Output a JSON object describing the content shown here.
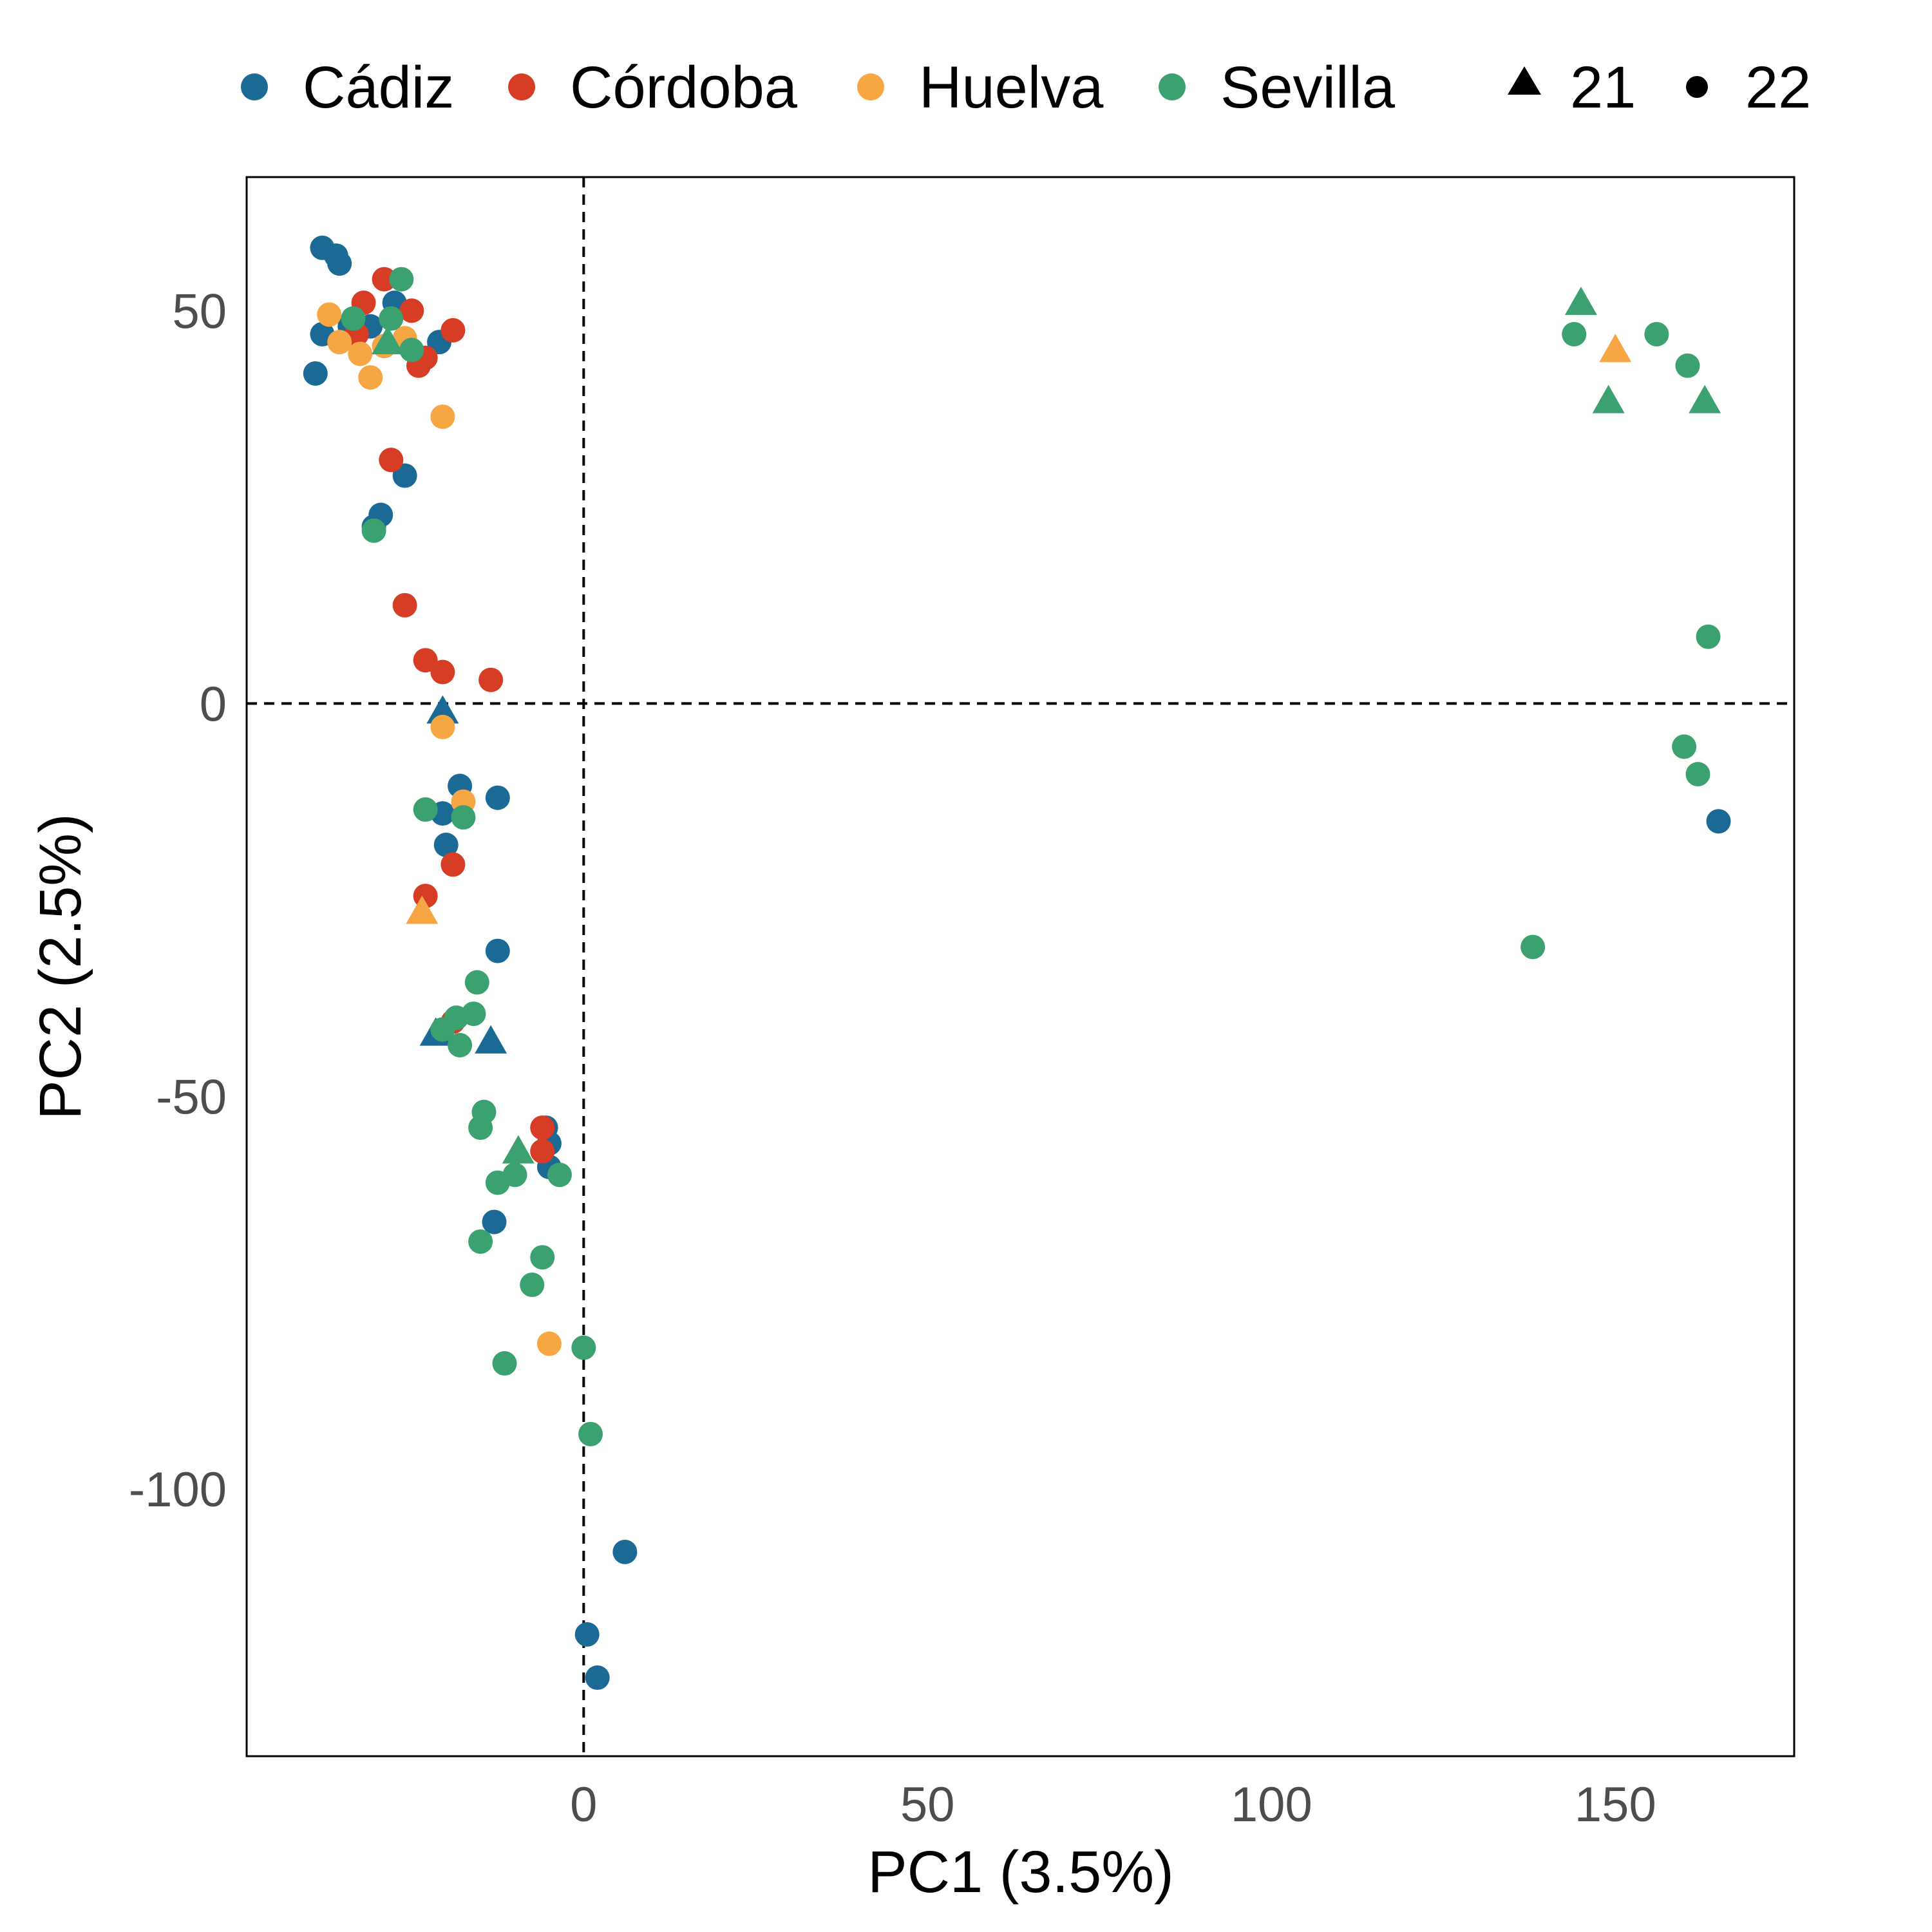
{
  "chart_data": {
    "type": "scatter",
    "title": "",
    "xlabel": "PC1 (3.5%)",
    "ylabel": "PC2 (2.5%)",
    "xlim": [
      -49,
      176
    ],
    "ylim": [
      -134,
      67
    ],
    "x_ticks": [
      0,
      50,
      100,
      150
    ],
    "y_ticks": [
      50,
      0,
      -50,
      -100
    ],
    "x_tick_labels": [
      "0",
      "50",
      "100",
      "150"
    ],
    "y_tick_labels": [
      "50",
      "0",
      "-50",
      "-100"
    ],
    "reference_lines": {
      "x": 0,
      "y": 0,
      "style": "dashed"
    },
    "grid": false,
    "legend_position": "top",
    "legend_color": [
      {
        "label": "Cádiz",
        "color": "#1B6A96"
      },
      {
        "label": "Córdoba",
        "color": "#D73C24"
      },
      {
        "label": "Huelva",
        "color": "#F6A744"
      },
      {
        "label": "Sevilla",
        "color": "#3BA170"
      }
    ],
    "legend_shape": [
      {
        "label": "21",
        "shape": "triangle"
      },
      {
        "label": "22",
        "shape": "circle"
      }
    ],
    "series": [
      {
        "name": "Cádiz",
        "color": "#1B6A96",
        "points": [
          {
            "x": -38,
            "y": 58,
            "shape": "circle"
          },
          {
            "x": -36,
            "y": 57,
            "shape": "circle"
          },
          {
            "x": -35.5,
            "y": 56,
            "shape": "circle"
          },
          {
            "x": -38,
            "y": 47,
            "shape": "circle"
          },
          {
            "x": -39,
            "y": 42,
            "shape": "circle"
          },
          {
            "x": -34,
            "y": 48,
            "shape": "circle"
          },
          {
            "x": -31,
            "y": 48,
            "shape": "circle"
          },
          {
            "x": -27.5,
            "y": 51,
            "shape": "circle"
          },
          {
            "x": -21,
            "y": 46,
            "shape": "circle"
          },
          {
            "x": -26,
            "y": 29,
            "shape": "circle"
          },
          {
            "x": -29.5,
            "y": 24,
            "shape": "circle"
          },
          {
            "x": -30.5,
            "y": 22.5,
            "shape": "circle"
          },
          {
            "x": -18,
            "y": -10.5,
            "shape": "circle"
          },
          {
            "x": -20.5,
            "y": -14,
            "shape": "circle"
          },
          {
            "x": -12.5,
            "y": -12,
            "shape": "circle"
          },
          {
            "x": -20,
            "y": -18,
            "shape": "circle"
          },
          {
            "x": -12.5,
            "y": -31.5,
            "shape": "circle"
          },
          {
            "x": -5.5,
            "y": -54,
            "shape": "circle"
          },
          {
            "x": -5,
            "y": -56,
            "shape": "circle"
          },
          {
            "x": -5,
            "y": -59,
            "shape": "circle"
          },
          {
            "x": -13,
            "y": -66,
            "shape": "circle"
          },
          {
            "x": 6,
            "y": -108,
            "shape": "circle"
          },
          {
            "x": 0.5,
            "y": -118.5,
            "shape": "circle"
          },
          {
            "x": 2,
            "y": -124,
            "shape": "circle"
          },
          {
            "x": 165,
            "y": -15,
            "shape": "circle"
          },
          {
            "x": -20.5,
            "y": -1,
            "shape": "triangle"
          },
          {
            "x": -21.5,
            "y": -42,
            "shape": "triangle"
          },
          {
            "x": -13.5,
            "y": -43,
            "shape": "triangle"
          }
        ]
      },
      {
        "name": "Córdoba",
        "color": "#D73C24",
        "points": [
          {
            "x": -29,
            "y": 54,
            "shape": "circle"
          },
          {
            "x": -32,
            "y": 51,
            "shape": "circle"
          },
          {
            "x": -25,
            "y": 50,
            "shape": "circle"
          },
          {
            "x": -33,
            "y": 47,
            "shape": "circle"
          },
          {
            "x": -19,
            "y": 47.5,
            "shape": "circle"
          },
          {
            "x": -23,
            "y": 44,
            "shape": "circle"
          },
          {
            "x": -24,
            "y": 43,
            "shape": "circle"
          },
          {
            "x": -28,
            "y": 31,
            "shape": "circle"
          },
          {
            "x": -26,
            "y": 12.5,
            "shape": "circle"
          },
          {
            "x": -23,
            "y": 5.5,
            "shape": "circle"
          },
          {
            "x": -20.5,
            "y": 4,
            "shape": "circle"
          },
          {
            "x": -13.5,
            "y": 3,
            "shape": "circle"
          },
          {
            "x": -19,
            "y": -20.5,
            "shape": "circle"
          },
          {
            "x": -23,
            "y": -24.5,
            "shape": "circle"
          },
          {
            "x": -19,
            "y": -40.5,
            "shape": "circle"
          },
          {
            "x": -6,
            "y": -54,
            "shape": "circle"
          },
          {
            "x": -6,
            "y": -57,
            "shape": "circle"
          }
        ]
      },
      {
        "name": "Huelva",
        "color": "#F6A744",
        "points": [
          {
            "x": -37,
            "y": 49.5,
            "shape": "circle"
          },
          {
            "x": -35.5,
            "y": 46,
            "shape": "circle"
          },
          {
            "x": -32.5,
            "y": 44.5,
            "shape": "circle"
          },
          {
            "x": -31,
            "y": 41.5,
            "shape": "circle"
          },
          {
            "x": -29,
            "y": 45.5,
            "shape": "circle"
          },
          {
            "x": -26,
            "y": 46.5,
            "shape": "circle"
          },
          {
            "x": -20.5,
            "y": 36.5,
            "shape": "circle"
          },
          {
            "x": -20.5,
            "y": -3,
            "shape": "circle"
          },
          {
            "x": -17.5,
            "y": -12.5,
            "shape": "circle"
          },
          {
            "x": -5,
            "y": -81.5,
            "shape": "circle"
          },
          {
            "x": -23.5,
            "y": -26.5,
            "shape": "triangle"
          },
          {
            "x": 150,
            "y": 45,
            "shape": "triangle"
          }
        ]
      },
      {
        "name": "Sevilla",
        "color": "#3BA170",
        "points": [
          {
            "x": -26.5,
            "y": 54,
            "shape": "circle"
          },
          {
            "x": -33.5,
            "y": 49,
            "shape": "circle"
          },
          {
            "x": -28,
            "y": 49,
            "shape": "circle"
          },
          {
            "x": -25,
            "y": 45,
            "shape": "circle"
          },
          {
            "x": -30.5,
            "y": 22,
            "shape": "circle"
          },
          {
            "x": -23,
            "y": -13.5,
            "shape": "circle"
          },
          {
            "x": -17.5,
            "y": -14.5,
            "shape": "circle"
          },
          {
            "x": -15.5,
            "y": -35.5,
            "shape": "circle"
          },
          {
            "x": -16,
            "y": -39.5,
            "shape": "circle"
          },
          {
            "x": -18.5,
            "y": -40,
            "shape": "circle"
          },
          {
            "x": -20.5,
            "y": -41.5,
            "shape": "circle"
          },
          {
            "x": -18,
            "y": -43.5,
            "shape": "circle"
          },
          {
            "x": -14.5,
            "y": -52,
            "shape": "circle"
          },
          {
            "x": -15,
            "y": -54,
            "shape": "circle"
          },
          {
            "x": -10,
            "y": -60,
            "shape": "circle"
          },
          {
            "x": -12.5,
            "y": -61,
            "shape": "circle"
          },
          {
            "x": -3.5,
            "y": -60,
            "shape": "circle"
          },
          {
            "x": -15,
            "y": -68.5,
            "shape": "circle"
          },
          {
            "x": -6,
            "y": -70.5,
            "shape": "circle"
          },
          {
            "x": -7.5,
            "y": -74,
            "shape": "circle"
          },
          {
            "x": 0,
            "y": -82,
            "shape": "circle"
          },
          {
            "x": -11.5,
            "y": -84,
            "shape": "circle"
          },
          {
            "x": 1,
            "y": -93,
            "shape": "circle"
          },
          {
            "x": 144,
            "y": 47,
            "shape": "circle"
          },
          {
            "x": 156,
            "y": 47,
            "shape": "circle"
          },
          {
            "x": 160.5,
            "y": 43,
            "shape": "circle"
          },
          {
            "x": 163.5,
            "y": 8.5,
            "shape": "circle"
          },
          {
            "x": 160,
            "y": -5.5,
            "shape": "circle"
          },
          {
            "x": 162,
            "y": -9,
            "shape": "circle"
          },
          {
            "x": 138,
            "y": -31,
            "shape": "circle"
          },
          {
            "x": -28.5,
            "y": 46,
            "shape": "triangle"
          },
          {
            "x": -9.5,
            "y": -57,
            "shape": "triangle"
          },
          {
            "x": 145,
            "y": 51,
            "shape": "triangle"
          },
          {
            "x": 149,
            "y": 38.5,
            "shape": "triangle"
          },
          {
            "x": 163,
            "y": 38.5,
            "shape": "triangle"
          }
        ]
      }
    ]
  }
}
